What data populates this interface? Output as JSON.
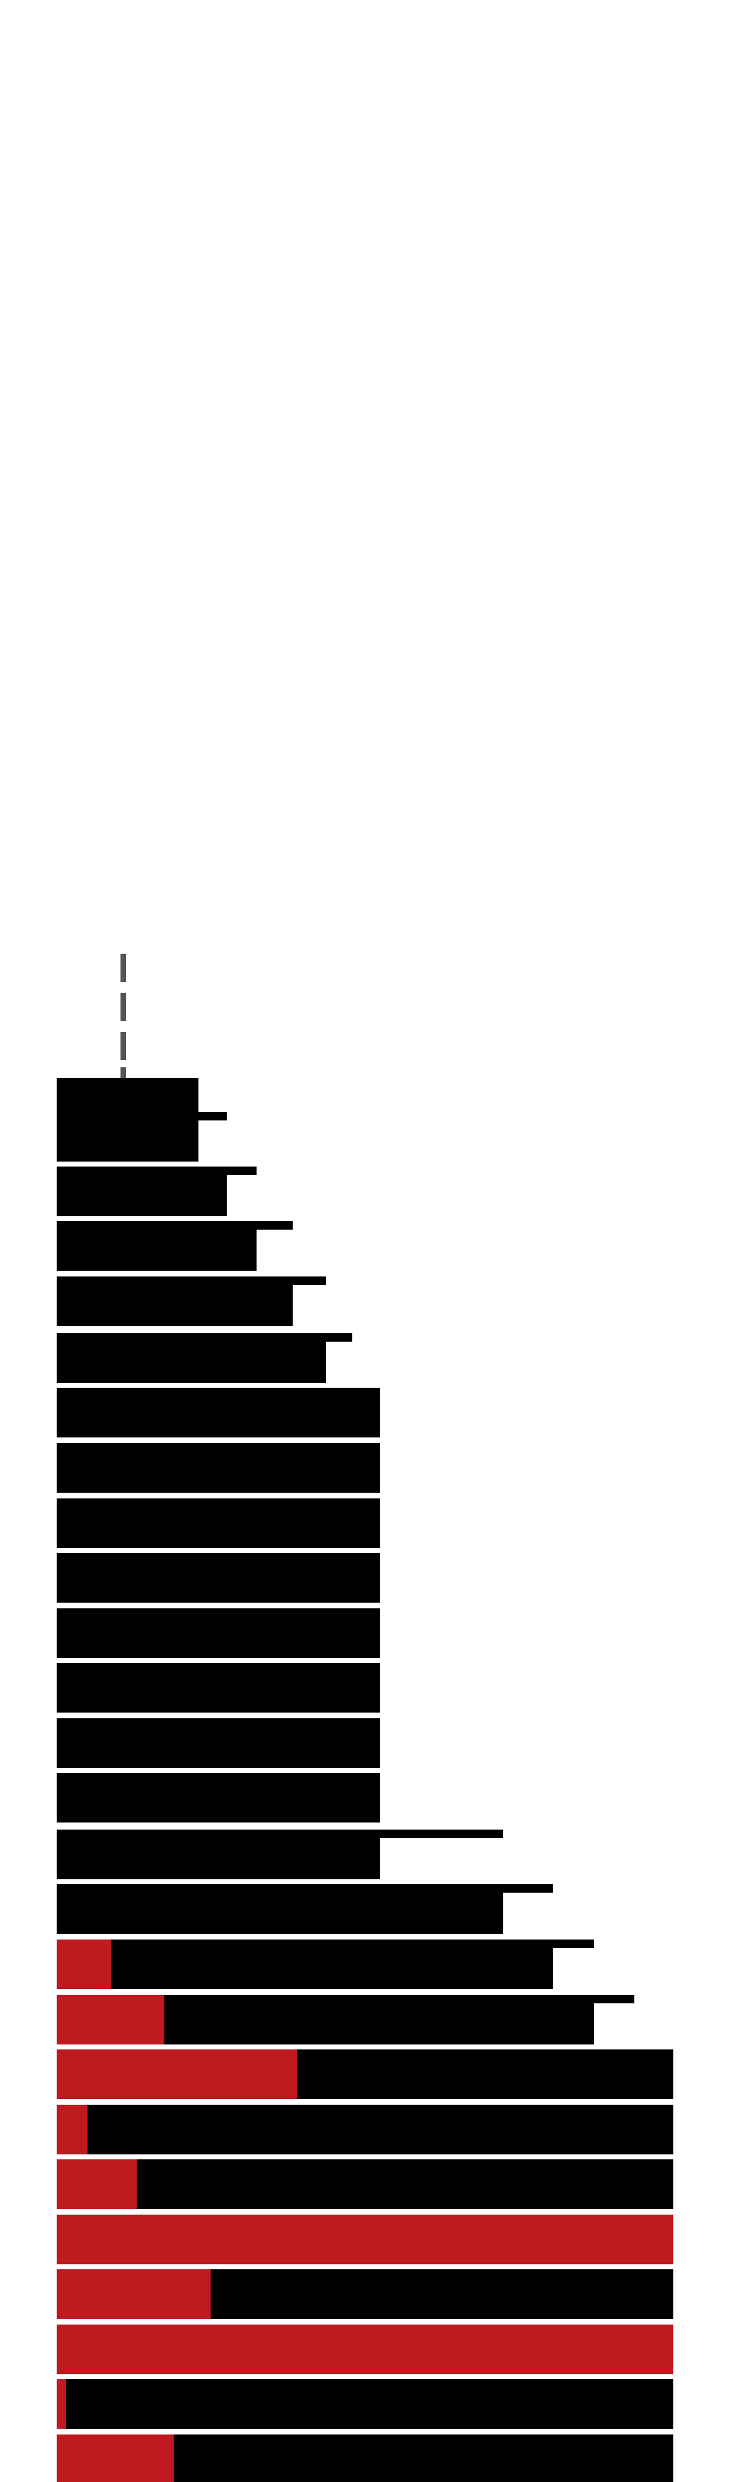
{
  "colors": {
    "background": "#ffffff",
    "building": "#000000",
    "accent": "#be1a20",
    "floor_gap": "#ffffff",
    "antenna": "#555555"
  },
  "floors": [
    {
      "red_fraction": 0.0
    },
    {
      "red_fraction": 0.0
    },
    {
      "red_fraction": 0.0
    },
    {
      "red_fraction": 0.0
    },
    {
      "red_fraction": 0.0
    },
    {
      "red_fraction": 0.0
    },
    {
      "red_fraction": 0.0
    },
    {
      "red_fraction": 0.0
    },
    {
      "red_fraction": 0.0
    },
    {
      "red_fraction": 0.0
    },
    {
      "red_fraction": 0.0
    },
    {
      "red_fraction": 0.0
    },
    {
      "red_fraction": 0.0
    },
    {
      "red_fraction": 0.0
    },
    {
      "red_fraction": 0.0
    },
    {
      "red_fraction": 0.0
    },
    {
      "red_fraction": 0.11
    },
    {
      "red_fraction": 0.2
    },
    {
      "red_fraction": 0.39
    },
    {
      "red_fraction": 0.05
    },
    {
      "red_fraction": 0.13
    },
    {
      "red_fraction": 1.0
    },
    {
      "red_fraction": 0.25
    },
    {
      "red_fraction": 1.0
    },
    {
      "red_fraction": 0.015
    },
    {
      "red_fraction": 0.19
    }
  ]
}
